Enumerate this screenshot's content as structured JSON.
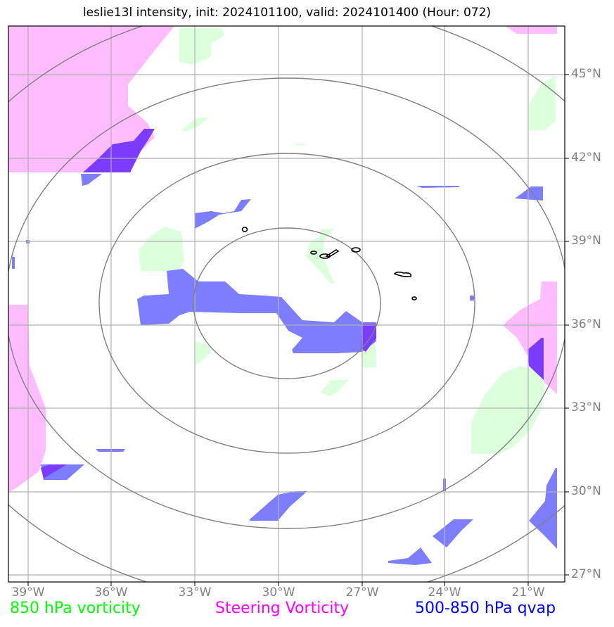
{
  "title": "leslie13l intensity, init: 2024101100, valid: 2024101400 (Hour: 072)",
  "lat_labels": [
    "45°N",
    "42°N",
    "39°N",
    "36°N",
    "33°N",
    "30°N",
    "27°N"
  ],
  "lon_labels": [
    "39°W",
    "36°W",
    "33°W",
    "30°W",
    "27°W",
    "24°W",
    "21°W"
  ],
  "legend": {
    "green": "850 hPa vorticity",
    "magenta": "Steering Vorticity",
    "blue": "500-850 hPa qvap"
  },
  "colors": {
    "green_text": "#00ff00",
    "magenta_text": "#ff00ff",
    "blue_text": "#0000ff",
    "green_fill": "#dcffdc",
    "magenta_fill": "#ffbcff",
    "blue_fill": "#7d7dff",
    "overlap_fill": "#7c3cff",
    "grid": "#b0b0b0",
    "rings": "#808080"
  }
}
